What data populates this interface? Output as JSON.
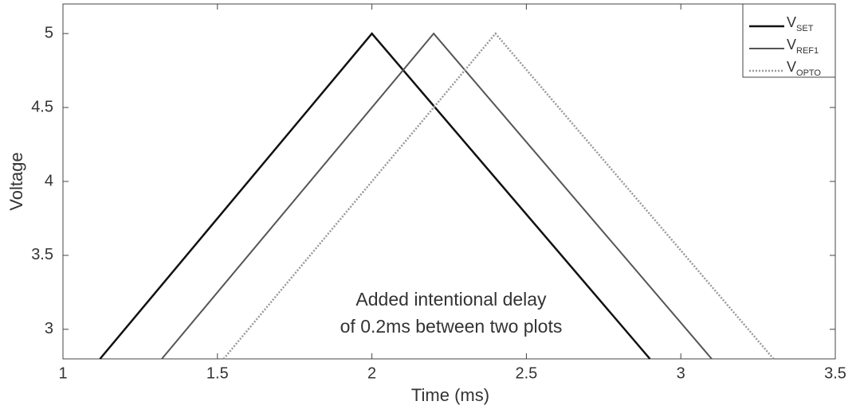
{
  "chart_data": {
    "type": "line",
    "xlabel": "Time (ms)",
    "ylabel": "Voltage",
    "annotation": [
      "Added intentional delay",
      "of 0.2ms between two plots"
    ],
    "xlim": [
      1,
      3.5
    ],
    "xticks": [
      1,
      1.5,
      2,
      2.5,
      3,
      3.5
    ],
    "ylim": [
      2.8,
      5.2
    ],
    "yticks": [
      3,
      3.5,
      4,
      4.5,
      5
    ],
    "legend": "upper right",
    "series": [
      {
        "name": "VSET",
        "color": "#111111",
        "x": [
          1.12,
          2,
          2.9
        ],
        "values": [
          2.8,
          5,
          2.8
        ]
      },
      {
        "name": "VREF1",
        "color": "#555555",
        "x": [
          1.32,
          2.2,
          3.1
        ],
        "values": [
          2.8,
          5,
          2.8
        ]
      },
      {
        "name": "VOPTO",
        "color": "#999999",
        "x": [
          1.52,
          2.4,
          3.3
        ],
        "values": [
          2.8,
          5,
          2.8
        ]
      }
    ]
  }
}
